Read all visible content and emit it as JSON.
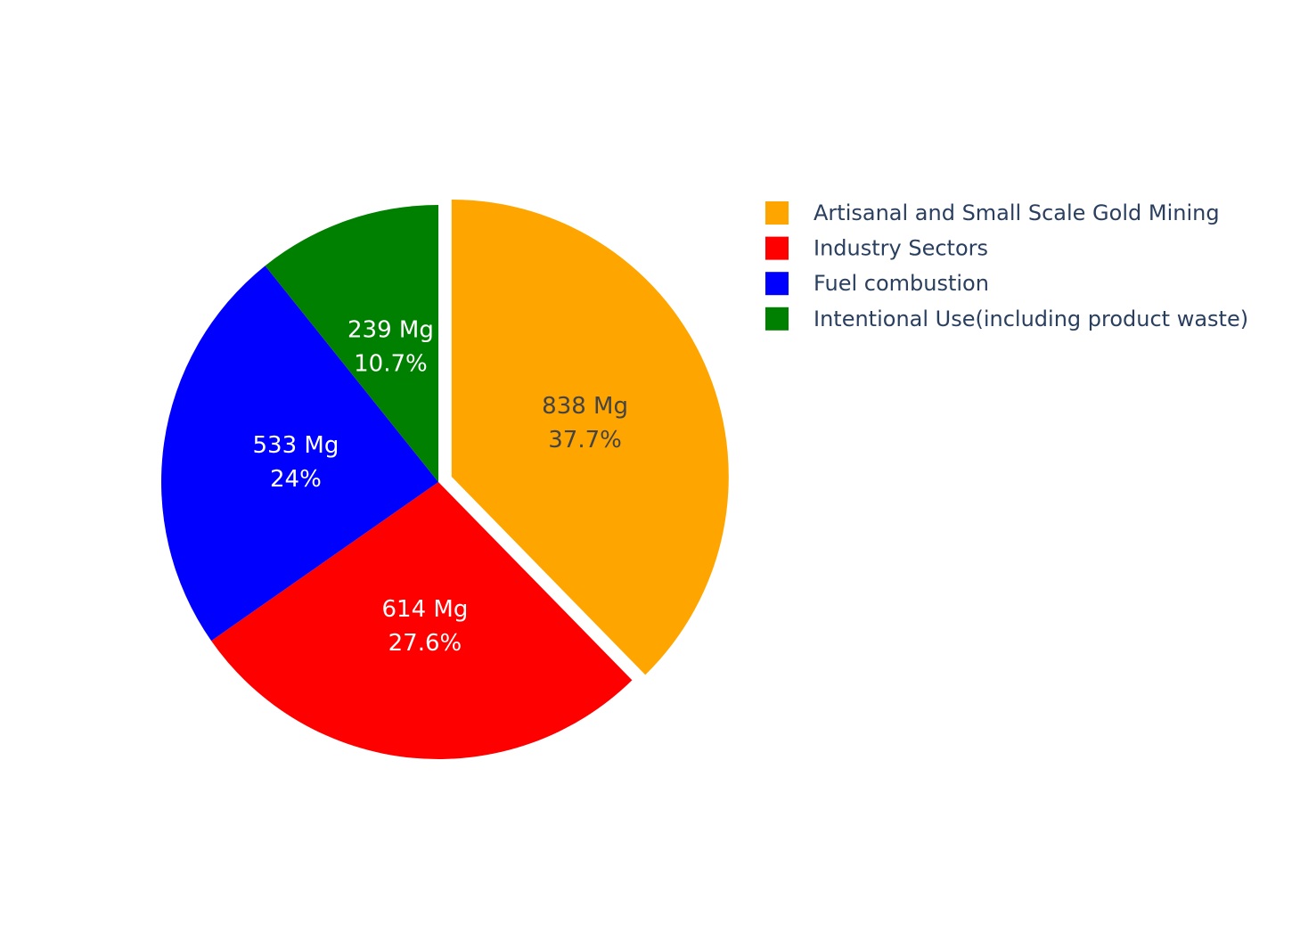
{
  "chart_data": {
    "type": "pie",
    "title": "",
    "slices": [
      {
        "label": "Artisanal and Small Scale Gold Mining",
        "value": 838,
        "value_text": "838 Mg",
        "percent_text": "37.7%",
        "color": "#FFA500",
        "text_color": "#444444",
        "pulled": true
      },
      {
        "label": "Industry Sectors",
        "value": 614,
        "value_text": "614 Mg",
        "percent_text": "27.6%",
        "color": "#FF0000",
        "text_color": "#FFFFFF",
        "pulled": false
      },
      {
        "label": "Fuel combustion",
        "value": 533,
        "value_text": "533 Mg",
        "percent_text": "24%",
        "color": "#0000FF",
        "text_color": "#FFFFFF",
        "pulled": false
      },
      {
        "label": "Intentional Use(including product waste)",
        "value": 239,
        "value_text": "239 Mg",
        "percent_text": "10.7%",
        "color": "#008000",
        "text_color": "#FFFFFF",
        "pulled": false
      }
    ],
    "direction": "clockwise",
    "start": "top",
    "legend_position": "top-right"
  }
}
